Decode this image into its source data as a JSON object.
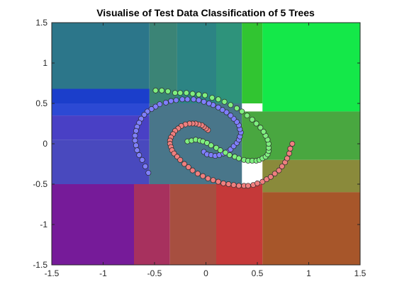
{
  "chart_data": {
    "type": "scatter",
    "title": "Visualise of Test Data Classification of 5 Trees",
    "xlabel": "",
    "ylabel": "",
    "xlim": [
      -1.5,
      1.5
    ],
    "ylim": [
      -1.5,
      1.5
    ],
    "xticks": [
      "-1.5",
      "-1",
      "-0.5",
      "0",
      "0.5",
      "1",
      "1.5"
    ],
    "yticks": [
      "-1.5",
      "-1",
      "-0.5",
      "0",
      "0.5",
      "1",
      "1.5"
    ],
    "grid": false,
    "legend": "none",
    "background_regions": [
      {
        "x": [
          -1.5,
          -0.55
        ],
        "y": [
          0.5,
          1.5
        ],
        "color": "#1a6a80"
      },
      {
        "x": [
          -0.55,
          -0.28
        ],
        "y": [
          0.5,
          1.5
        ],
        "color": "#2a7a6a"
      },
      {
        "x": [
          -0.28,
          0.1
        ],
        "y": [
          0.5,
          1.5
        ],
        "color": "#1a7a7a"
      },
      {
        "x": [
          0.1,
          0.35
        ],
        "y": [
          0.5,
          1.5
        ],
        "color": "#1c8a70"
      },
      {
        "x": [
          0.35,
          0.55
        ],
        "y": [
          0.5,
          1.5
        ],
        "color": "#20c020"
      },
      {
        "x": [
          0.55,
          1.5
        ],
        "y": [
          0.4,
          1.5
        ],
        "color": "#00e63a"
      },
      {
        "x": [
          -1.5,
          -0.55
        ],
        "y": [
          0.35,
          0.68
        ],
        "color": "#1a3ad0"
      },
      {
        "x": [
          -1.5,
          -0.55
        ],
        "y": [
          0.05,
          0.35
        ],
        "color": "#3a30c0"
      },
      {
        "x": [
          -1.5,
          -0.55
        ],
        "y": [
          -0.5,
          0.05
        ],
        "color": "#3a3ab8"
      },
      {
        "x": [
          -0.55,
          0.35
        ],
        "y": [
          -0.5,
          0.5
        ],
        "color": "#3a6a80"
      },
      {
        "x": [
          0.35,
          1.5
        ],
        "y": [
          -0.2,
          0.4
        ],
        "color": "#3aa030"
      },
      {
        "x": [
          0.55,
          1.5
        ],
        "y": [
          -0.6,
          -0.2
        ],
        "color": "#80802a"
      },
      {
        "x": [
          -1.5,
          -0.7
        ],
        "y": [
          -1.5,
          -0.5
        ],
        "color": "#6a0890"
      },
      {
        "x": [
          -0.7,
          -0.35
        ],
        "y": [
          -1.5,
          -0.5
        ],
        "color": "#a02050"
      },
      {
        "x": [
          -0.35,
          0.1
        ],
        "y": [
          -1.5,
          -0.5
        ],
        "color": "#a04030"
      },
      {
        "x": [
          0.1,
          0.55
        ],
        "y": [
          -1.5,
          -0.5
        ],
        "color": "#c02828"
      },
      {
        "x": [
          0.55,
          1.5
        ],
        "y": [
          -1.5,
          -0.6
        ],
        "color": "#a04818"
      }
    ],
    "series": [
      {
        "color": "#7f7fff",
        "x": [
          -0.02,
          0.01,
          0.05,
          0.09,
          0.13,
          0.17,
          0.21,
          0.24,
          0.27,
          0.3,
          0.32,
          0.33,
          0.34,
          0.33,
          0.32,
          0.3,
          0.27,
          0.24,
          0.2,
          0.16,
          0.12,
          0.07,
          0.03,
          -0.02,
          -0.07,
          -0.12,
          -0.18,
          -0.23,
          -0.29,
          -0.34,
          -0.39,
          -0.45,
          -0.49,
          -0.53,
          -0.57,
          -0.6,
          -0.63,
          -0.65,
          -0.67,
          -0.68,
          -0.69,
          -0.69,
          -0.68,
          -0.67,
          -0.65,
          -0.62,
          -0.59,
          -0.56
        ],
        "y": [
          -0.1,
          -0.13,
          -0.14,
          -0.15,
          -0.14,
          -0.12,
          -0.1,
          -0.07,
          -0.03,
          0.01,
          0.05,
          0.09,
          0.14,
          0.18,
          0.23,
          0.27,
          0.31,
          0.35,
          0.39,
          0.42,
          0.45,
          0.48,
          0.5,
          0.52,
          0.54,
          0.55,
          0.55,
          0.55,
          0.54,
          0.53,
          0.51,
          0.49,
          0.46,
          0.43,
          0.4,
          0.36,
          0.31,
          0.26,
          0.21,
          0.16,
          0.1,
          0.04,
          -0.02,
          -0.08,
          -0.14,
          -0.2,
          -0.28,
          -0.36
        ]
      },
      {
        "color": "#7fef7f",
        "x": [
          -0.18,
          -0.14,
          -0.1,
          -0.06,
          -0.03,
          0.01,
          0.05,
          0.1,
          0.14,
          0.19,
          0.23,
          0.28,
          0.32,
          0.37,
          0.41,
          0.45,
          0.49,
          0.52,
          0.55,
          0.58,
          0.6,
          0.61,
          0.61,
          0.61,
          0.6,
          0.58,
          0.56,
          0.53,
          0.49,
          0.45,
          0.4,
          0.35,
          0.3,
          0.24,
          0.18,
          0.12,
          0.06,
          -0.01,
          -0.07,
          -0.13,
          -0.19,
          -0.25,
          -0.3,
          -0.37,
          -0.43,
          -0.49
        ],
        "y": [
          0.03,
          0.04,
          0.05,
          0.04,
          0.03,
          0.01,
          -0.02,
          -0.05,
          -0.08,
          -0.11,
          -0.14,
          -0.16,
          -0.18,
          -0.2,
          -0.21,
          -0.21,
          -0.21,
          -0.2,
          -0.18,
          -0.16,
          -0.13,
          -0.09,
          -0.05,
          0.0,
          0.05,
          0.1,
          0.15,
          0.2,
          0.25,
          0.3,
          0.35,
          0.4,
          0.44,
          0.48,
          0.52,
          0.55,
          0.57,
          0.6,
          0.61,
          0.62,
          0.63,
          0.63,
          0.63,
          0.65,
          0.66,
          0.66
        ]
      },
      {
        "color": "#ef7f7f",
        "x": [
          0.02,
          0.0,
          -0.02,
          -0.04,
          -0.07,
          -0.1,
          -0.13,
          -0.16,
          -0.2,
          -0.24,
          -0.27,
          -0.3,
          -0.32,
          -0.34,
          -0.35,
          -0.35,
          -0.34,
          -0.33,
          -0.31,
          -0.28,
          -0.25,
          -0.21,
          -0.17,
          -0.13,
          -0.08,
          -0.03,
          0.02,
          0.07,
          0.12,
          0.17,
          0.22,
          0.27,
          0.32,
          0.37,
          0.41,
          0.46,
          0.5,
          0.55,
          0.59,
          0.63,
          0.67,
          0.71,
          0.74,
          0.77,
          0.79,
          0.81,
          0.82,
          0.84
        ],
        "y": [
          0.17,
          0.19,
          0.21,
          0.23,
          0.24,
          0.25,
          0.25,
          0.25,
          0.24,
          0.22,
          0.19,
          0.16,
          0.12,
          0.08,
          0.04,
          0.0,
          -0.04,
          -0.08,
          -0.12,
          -0.16,
          -0.2,
          -0.25,
          -0.29,
          -0.33,
          -0.37,
          -0.4,
          -0.43,
          -0.45,
          -0.47,
          -0.49,
          -0.5,
          -0.51,
          -0.52,
          -0.52,
          -0.52,
          -0.51,
          -0.49,
          -0.47,
          -0.44,
          -0.41,
          -0.37,
          -0.33,
          -0.28,
          -0.23,
          -0.18,
          -0.12,
          -0.06,
          0.0
        ]
      }
    ]
  }
}
